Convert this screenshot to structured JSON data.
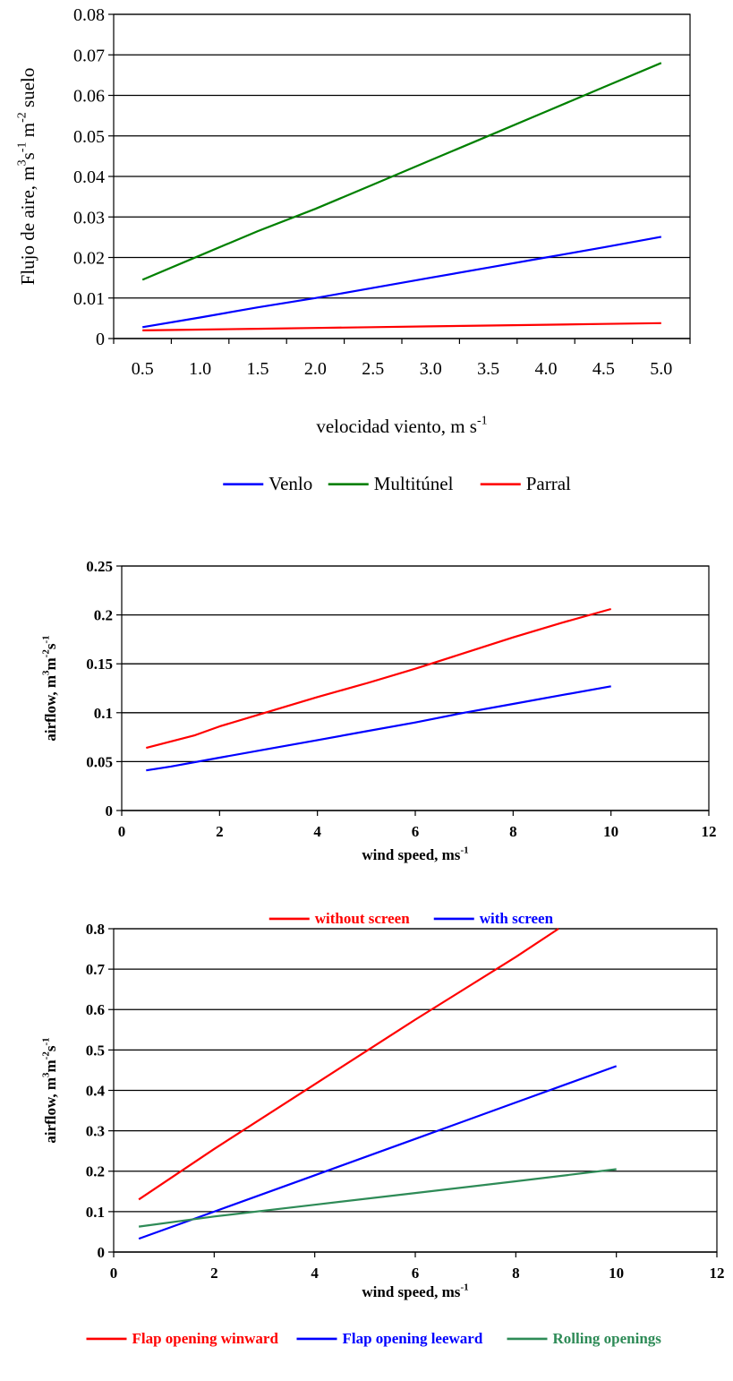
{
  "chart_data": [
    {
      "type": "line",
      "title": "",
      "xlabel": "velocidad viento, m s",
      "xlabel_sup": "-1",
      "ylabel_parts": [
        "Flujo de aire, m",
        "3",
        "s",
        "-1",
        " m",
        "-2",
        " suelo"
      ],
      "x_axis": "category",
      "categories": [
        "0.5",
        "1.0",
        "1.5",
        "2.0",
        "2.5",
        "3.0",
        "3.5",
        "4.0",
        "4.5",
        "5.0"
      ],
      "ylim": [
        0,
        0.08
      ],
      "yticks": [
        "0",
        "0.01",
        "0.02",
        "0.03",
        "0.04",
        "0.05",
        "0.06",
        "0.07",
        "0.08"
      ],
      "grid": true,
      "legend": "bottom",
      "series": [
        {
          "name": "Venlo",
          "color": "#0000ff",
          "values": [
            0.0028,
            0.0052,
            0.0077,
            0.01,
            0.0125,
            0.015,
            0.0175,
            0.02,
            0.0225,
            0.0251
          ]
        },
        {
          "name": "Multitúnel",
          "color": "#008000",
          "values": [
            0.0145,
            0.0205,
            0.0265,
            0.032,
            0.038,
            0.044,
            0.05,
            0.056,
            0.062,
            0.068
          ]
        },
        {
          "name": "Parral",
          "color": "#ff0000",
          "values": [
            0.002,
            0.0022,
            0.0024,
            0.0026,
            0.0028,
            0.003,
            0.0032,
            0.0034,
            0.0036,
            0.0038
          ]
        }
      ]
    },
    {
      "type": "line",
      "title": "",
      "xlabel": "wind speed, ms",
      "xlabel_sup": "-1",
      "ylabel_parts": [
        "airflow, m",
        "3",
        "m",
        "-2",
        "s",
        "-1"
      ],
      "x_axis": "numeric",
      "xlim": [
        0,
        12
      ],
      "xticks": [
        "0",
        "2",
        "4",
        "6",
        "8",
        "10",
        "12"
      ],
      "ylim": [
        0,
        0.25
      ],
      "yticks": [
        "0",
        "0.05",
        "0.1",
        "0.15",
        "0.2",
        "0.25"
      ],
      "grid": true,
      "legend": "bottom",
      "series": [
        {
          "name": "without screen",
          "color": "#ff0000",
          "x": [
            0.5,
            1.5,
            2,
            3,
            4,
            5,
            6,
            7,
            8,
            9,
            10
          ],
          "values": [
            0.064,
            0.077,
            0.086,
            0.101,
            0.116,
            0.13,
            0.145,
            0.161,
            0.177,
            0.192,
            0.206
          ]
        },
        {
          "name": "with screen",
          "color": "#0000ff",
          "x": [
            0.5,
            1,
            2,
            3,
            4,
            5,
            6,
            7,
            8,
            9,
            10
          ],
          "values": [
            0.041,
            0.045,
            0.054,
            0.063,
            0.072,
            0.081,
            0.09,
            0.1,
            0.109,
            0.118,
            0.127
          ]
        }
      ]
    },
    {
      "type": "line",
      "title": "",
      "xlabel": "wind speed, ms",
      "xlabel_sup": "-1",
      "ylabel_parts": [
        "airflow, m",
        "3",
        "m",
        "-2",
        "s",
        "-1"
      ],
      "x_axis": "numeric",
      "xlim": [
        0,
        12
      ],
      "xticks": [
        "0",
        "2",
        "4",
        "6",
        "8",
        "10",
        "12"
      ],
      "ylim": [
        0,
        0.8
      ],
      "yticks": [
        "0",
        "0.1",
        "0.2",
        "0.3",
        "0.4",
        "0.5",
        "0.6",
        "0.7",
        "0.8"
      ],
      "grid": true,
      "legend": "bottom",
      "series": [
        {
          "name": "Flap opening winward",
          "color": "#ff0000",
          "x": [
            0.5,
            2,
            4,
            6,
            8,
            8.85
          ],
          "values": [
            0.13,
            0.255,
            0.415,
            0.575,
            0.73,
            0.8
          ]
        },
        {
          "name": "Flap opening leeward",
          "color": "#0000ff",
          "x": [
            0.5,
            2,
            4,
            6,
            8,
            10
          ],
          "values": [
            0.033,
            0.1,
            0.19,
            0.28,
            0.37,
            0.46
          ]
        },
        {
          "name": "Rolling openings",
          "color": "#2e8b57",
          "x": [
            0.5,
            2,
            4,
            6,
            8,
            10
          ],
          "values": [
            0.063,
            0.088,
            0.117,
            0.146,
            0.175,
            0.205
          ]
        }
      ]
    }
  ]
}
